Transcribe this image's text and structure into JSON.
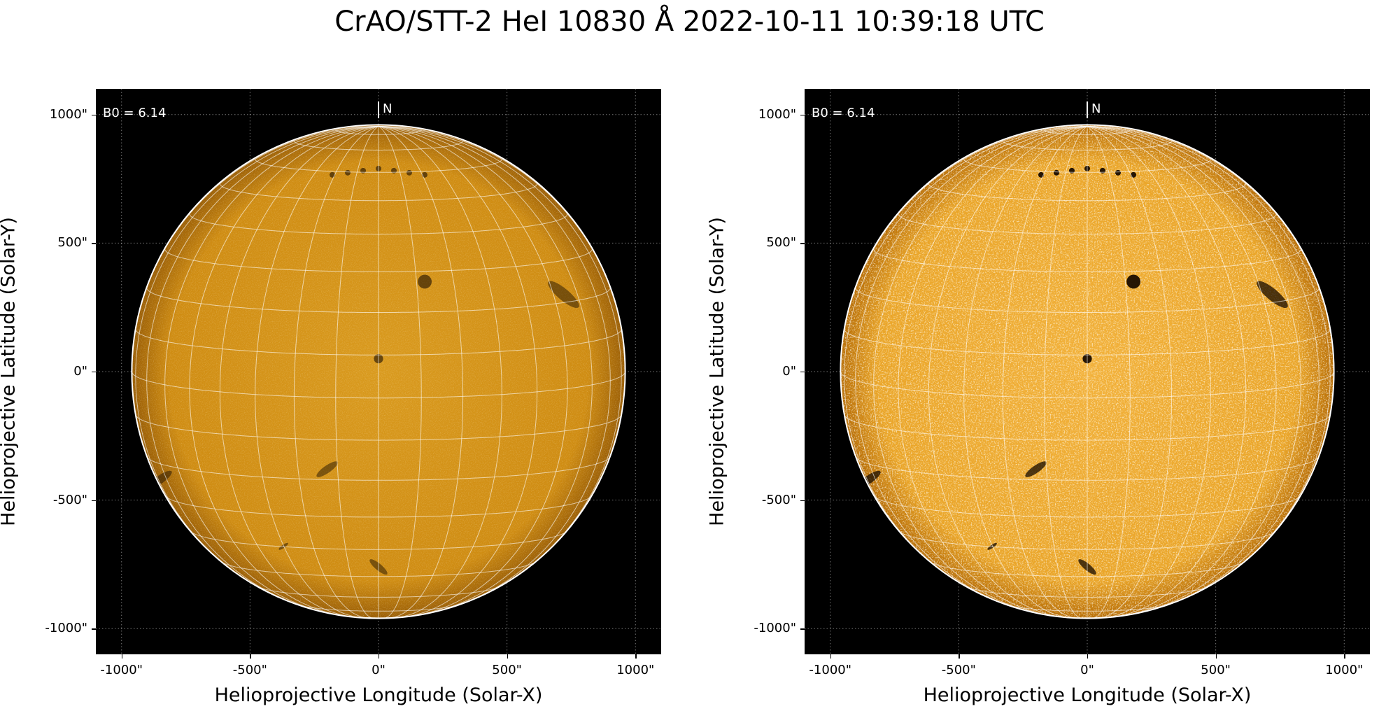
{
  "title": "CrAO/STT-2 HeI 10830 Å 2022-10-11 10:39:18 UTC",
  "colors": {
    "sun_base": "#d9920a",
    "sun_bright": "#ffe7a8",
    "sun_dark": "#1a0d00",
    "grid": "#ffffff"
  },
  "panels": [
    {
      "name": "left",
      "annotation": "B0 = 6.14",
      "north_label": "N",
      "x_label": "Helioprojective Longitude (Solar-X)",
      "y_label": "Helioprojective Latitude (Solar-Y)",
      "x_ticks": [
        "-1000\"",
        "-500\"",
        "0\"",
        "500\"",
        "1000\""
      ],
      "y_ticks": [
        "1000\"",
        "500\"",
        "0\"",
        "-500\"",
        "-1000\""
      ],
      "contrast": "normal"
    },
    {
      "name": "right",
      "annotation": "B0 = 6.14",
      "north_label": "N",
      "x_label": "Helioprojective Longitude (Solar-X)",
      "y_label": "Helioprojective Latitude (Solar-Y)",
      "x_ticks": [
        "-1000\"",
        "-500\"",
        "0\"",
        "500\"",
        "1000\""
      ],
      "y_ticks": [
        "1000\"",
        "500\"",
        "0\"",
        "-500\"",
        "-1000\""
      ],
      "contrast": "enhanced"
    }
  ],
  "axis_range_arcsec": [
    -1100,
    1100
  ],
  "tick_values_arcsec": [
    -1000,
    -500,
    0,
    500,
    1000
  ],
  "solar_radius_arcsec": 960,
  "b0_deg": 6.14,
  "dark_features": [
    {
      "kind": "active-region",
      "x": 180,
      "y": 350,
      "size": 60
    },
    {
      "kind": "active-region",
      "x": 0,
      "y": 50,
      "size": 40
    },
    {
      "kind": "filament-channel",
      "x": 720,
      "y": 300,
      "size": 140
    },
    {
      "kind": "filament",
      "x": -200,
      "y": -380,
      "size": 90
    },
    {
      "kind": "filament",
      "x": -370,
      "y": -680,
      "size": 40
    },
    {
      "kind": "filament",
      "x": 0,
      "y": -760,
      "size": 80
    },
    {
      "kind": "filament",
      "x": -850,
      "y": -420,
      "size": 100
    },
    {
      "kind": "polar-spots",
      "x": 0,
      "y": 790,
      "size": 40
    }
  ]
}
